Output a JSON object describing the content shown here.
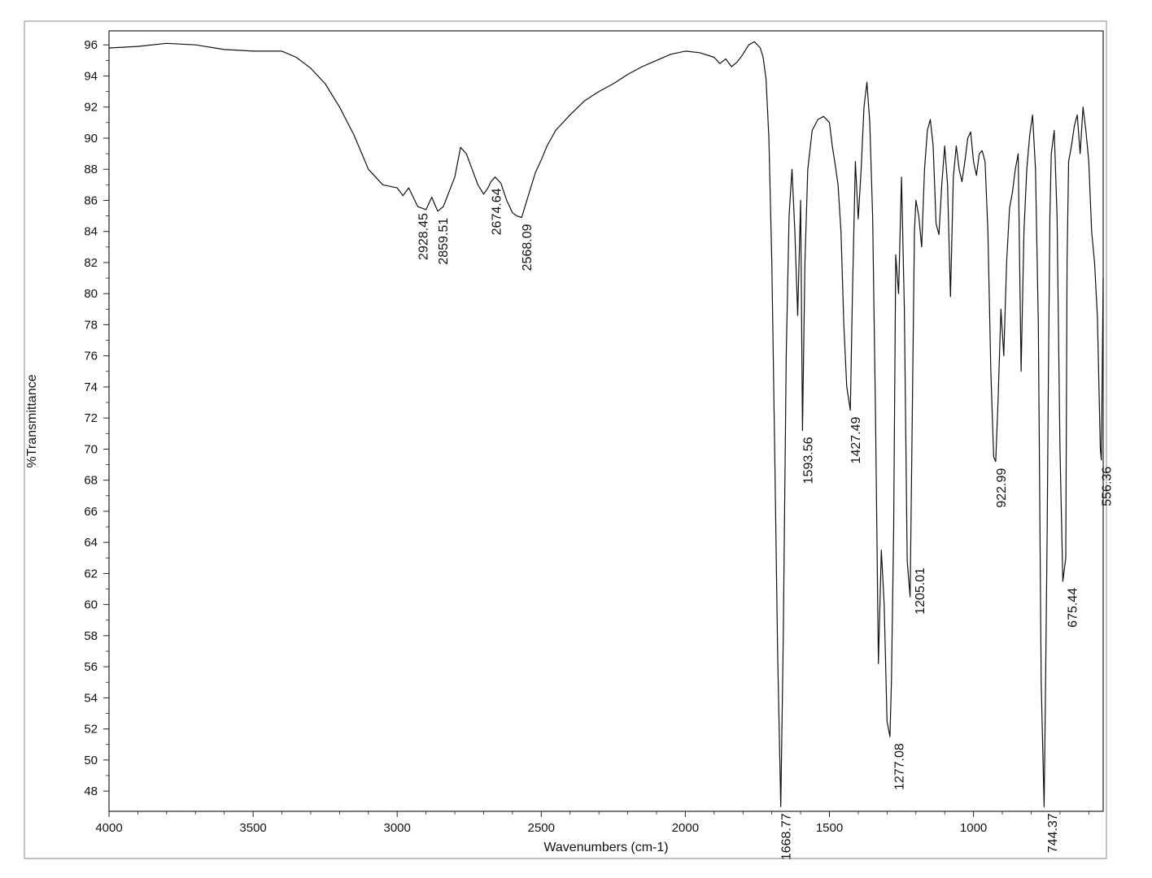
{
  "chart_data": {
    "type": "line",
    "title": "",
    "xlabel": "Wavenumbers (cm-1)",
    "ylabel": "%Transmittance",
    "xlim": [
      4000,
      550
    ],
    "ylim": [
      46.7,
      96.9
    ],
    "x_reversed": true,
    "grid": false,
    "x_ticks": [
      4000,
      3500,
      3000,
      2500,
      2000,
      1500,
      1000
    ],
    "y_ticks": [
      48,
      50,
      52,
      54,
      56,
      58,
      60,
      62,
      64,
      66,
      68,
      70,
      72,
      74,
      76,
      78,
      80,
      82,
      84,
      86,
      88,
      90,
      92,
      94,
      96
    ],
    "series": [
      {
        "color": "#111111",
        "x": [
          4000,
          3900,
          3800,
          3700,
          3600,
          3500,
          3400,
          3350,
          3300,
          3250,
          3200,
          3150,
          3100,
          3050,
          3000,
          2980,
          2960,
          2928.45,
          2900,
          2880,
          2859.51,
          2840,
          2800,
          2780,
          2760,
          2740,
          2720,
          2700,
          2685,
          2674.64,
          2660,
          2640,
          2620,
          2600,
          2585,
          2568.09,
          2550,
          2520,
          2500,
          2480,
          2450,
          2400,
          2350,
          2300,
          2250,
          2200,
          2150,
          2100,
          2050,
          2000,
          1950,
          1900,
          1880,
          1860,
          1840,
          1820,
          1800,
          1780,
          1760,
          1740,
          1730,
          1720,
          1710,
          1700,
          1690,
          1680,
          1668.77,
          1660,
          1650,
          1640,
          1630,
          1620,
          1610,
          1600,
          1593.56,
          1585,
          1575,
          1560,
          1540,
          1520,
          1500,
          1490,
          1480,
          1470,
          1460,
          1450,
          1440,
          1427.49,
          1420,
          1410,
          1400,
          1390,
          1380,
          1370,
          1360,
          1350,
          1340,
          1330,
          1320,
          1310,
          1300,
          1290,
          1285,
          1277.08,
          1270,
          1260,
          1250,
          1240,
          1230,
          1220,
          1210,
          1205.01,
          1200,
          1190,
          1180,
          1170,
          1160,
          1150,
          1140,
          1130,
          1120,
          1110,
          1100,
          1090,
          1080,
          1070,
          1060,
          1050,
          1040,
          1030,
          1020,
          1010,
          1000,
          990,
          980,
          970,
          960,
          950,
          940,
          930,
          922.99,
          915,
          905,
          895,
          885,
          875,
          865,
          855,
          845,
          835,
          825,
          815,
          805,
          795,
          785,
          775,
          765,
          755,
          750,
          744.37,
          740,
          735,
          730,
          720,
          710,
          700,
          690,
          680,
          675.44,
          670,
          660,
          650,
          640,
          630,
          620,
          610,
          600,
          590,
          580,
          570,
          560,
          556.36,
          550
        ],
        "y": [
          95.8,
          95.9,
          96.1,
          96.0,
          95.7,
          95.6,
          95.6,
          95.2,
          94.5,
          93.5,
          92.0,
          90.2,
          88.0,
          87.0,
          86.8,
          86.3,
          86.8,
          85.6,
          85.4,
          86.2,
          85.3,
          85.6,
          87.5,
          89.4,
          89.0,
          88.0,
          87.0,
          86.4,
          86.8,
          87.2,
          87.5,
          87.1,
          86.0,
          85.2,
          85.0,
          84.9,
          86.0,
          87.8,
          88.6,
          89.5,
          90.5,
          91.5,
          92.4,
          93.0,
          93.5,
          94.1,
          94.6,
          95.0,
          95.4,
          95.6,
          95.5,
          95.2,
          94.8,
          95.1,
          94.6,
          94.9,
          95.4,
          96.0,
          96.2,
          95.8,
          95.2,
          93.8,
          90.0,
          82.0,
          70.0,
          57.0,
          47.0,
          58.0,
          76.0,
          85.0,
          88.0,
          84.0,
          78.6,
          86.0,
          71.2,
          82.0,
          88.0,
          90.5,
          91.2,
          91.4,
          91.0,
          89.5,
          88.3,
          87.0,
          84.0,
          78.0,
          74.0,
          72.5,
          80.0,
          88.5,
          84.8,
          88.0,
          92.0,
          93.6,
          91.0,
          85.0,
          72.0,
          56.2,
          63.5,
          60.0,
          52.5,
          51.5,
          55.0,
          65.0,
          82.5,
          80.0,
          87.5,
          79.0,
          62.8,
          60.5,
          76.0,
          84.0,
          86.0,
          85.0,
          83.0,
          88.0,
          90.5,
          91.2,
          89.5,
          84.5,
          83.8,
          87.0,
          89.5,
          87.0,
          79.8,
          87.5,
          89.5,
          88.0,
          87.2,
          88.5,
          90.0,
          90.4,
          88.5,
          87.6,
          89.0,
          89.2,
          88.5,
          84.0,
          75.0,
          69.5,
          69.2,
          73.0,
          79.0,
          76.0,
          82.0,
          85.5,
          86.5,
          88.0,
          89.0,
          75.0,
          84.0,
          88.0,
          90.2,
          91.5,
          88.0,
          78.0,
          55.0,
          47.0,
          55.0,
          65.0,
          75.0,
          85.0,
          89.0,
          90.5,
          85.0,
          70.0,
          61.5,
          63.0,
          82.0,
          88.5,
          89.5,
          90.8,
          91.5,
          89.0,
          92.0,
          90.5,
          88.5,
          84.0,
          82.0,
          78.5,
          70.0,
          69.3,
          81.0
        ]
      }
    ],
    "annotations": [
      {
        "text": "2928.45",
        "x": 2928.45,
        "y": 85.6
      },
      {
        "text": "2859.51",
        "x": 2859.51,
        "y": 85.3
      },
      {
        "text": "2674.64",
        "x": 2674.64,
        "y": 87.2
      },
      {
        "text": "2568.09",
        "x": 2568.09,
        "y": 84.9
      },
      {
        "text": "1668.77",
        "x": 1668.77,
        "y": 47.0
      },
      {
        "text": "1593.56",
        "x": 1593.56,
        "y": 71.2
      },
      {
        "text": "1427.49",
        "x": 1427.49,
        "y": 72.5
      },
      {
        "text": "1277.08",
        "x": 1277.08,
        "y": 51.5
      },
      {
        "text": "1205.01",
        "x": 1205.01,
        "y": 62.8
      },
      {
        "text": "922.99",
        "x": 922.99,
        "y": 69.2
      },
      {
        "text": "744.37",
        "x": 744.37,
        "y": 47.0
      },
      {
        "text": "675.44",
        "x": 675.44,
        "y": 61.5
      },
      {
        "text": "556.36",
        "x": 556.36,
        "y": 69.3
      }
    ]
  }
}
